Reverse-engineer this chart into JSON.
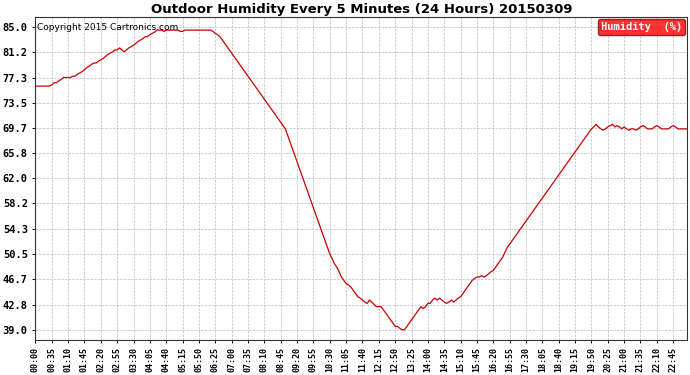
{
  "title": "Outdoor Humidity Every 5 Minutes (24 Hours) 20150309",
  "copyright": "Copyright 2015 Cartronics.com",
  "legend_label": "Humidity  (%)",
  "line_color": "#cc0000",
  "background_color": "#ffffff",
  "grid_color": "#bbbbbb",
  "yticks": [
    39.0,
    42.8,
    46.7,
    50.5,
    54.3,
    58.2,
    62.0,
    65.8,
    69.7,
    73.5,
    77.3,
    81.2,
    85.0
  ],
  "ylim": [
    37.5,
    86.5
  ],
  "humidity_data": [
    76.0,
    76.0,
    76.0,
    76.0,
    76.0,
    76.0,
    76.0,
    76.2,
    76.5,
    76.5,
    76.8,
    77.0,
    77.3,
    77.3,
    77.3,
    77.3,
    77.5,
    77.5,
    77.8,
    78.0,
    78.2,
    78.5,
    78.8,
    79.0,
    79.3,
    79.5,
    79.5,
    79.8,
    80.0,
    80.2,
    80.5,
    80.8,
    81.0,
    81.2,
    81.5,
    81.5,
    81.8,
    81.5,
    81.2,
    81.5,
    81.8,
    82.0,
    82.2,
    82.5,
    82.8,
    83.0,
    83.2,
    83.5,
    83.5,
    83.8,
    84.0,
    84.2,
    84.5,
    84.5,
    84.5,
    84.3,
    84.5,
    84.5,
    84.5,
    84.5,
    84.5,
    84.5,
    84.3,
    84.3,
    84.5,
    84.5,
    84.5,
    84.5,
    84.5,
    84.5,
    84.5,
    84.5,
    84.5,
    84.5,
    84.5,
    84.5,
    84.3,
    84.0,
    83.8,
    83.5,
    83.0,
    82.5,
    82.0,
    81.5,
    81.0,
    80.5,
    80.0,
    79.5,
    79.0,
    78.5,
    78.0,
    77.5,
    77.0,
    76.5,
    76.0,
    75.5,
    75.0,
    74.5,
    74.0,
    73.5,
    73.0,
    72.5,
    72.0,
    71.5,
    71.0,
    70.5,
    70.0,
    69.5,
    68.5,
    67.5,
    66.5,
    65.5,
    64.5,
    63.5,
    62.5,
    61.5,
    60.5,
    59.5,
    58.5,
    57.5,
    56.5,
    55.5,
    54.5,
    53.5,
    52.5,
    51.5,
    50.5,
    49.8,
    49.0,
    48.5,
    47.8,
    47.0,
    46.5,
    46.0,
    45.8,
    45.5,
    45.0,
    44.5,
    44.0,
    43.8,
    43.5,
    43.2,
    43.0,
    43.5,
    43.2,
    42.8,
    42.5,
    42.5,
    42.5,
    42.0,
    41.5,
    41.0,
    40.5,
    40.0,
    39.5,
    39.5,
    39.2,
    39.0,
    39.0,
    39.5,
    40.0,
    40.5,
    41.0,
    41.5,
    42.0,
    42.5,
    42.2,
    42.5,
    43.0,
    43.0,
    43.5,
    43.8,
    43.5,
    43.8,
    43.5,
    43.2,
    43.0,
    43.2,
    43.5,
    43.2,
    43.5,
    43.8,
    44.0,
    44.5,
    45.0,
    45.5,
    46.0,
    46.5,
    46.8,
    47.0,
    47.0,
    47.2,
    47.0,
    47.2,
    47.5,
    47.8,
    48.0,
    48.5,
    49.0,
    49.5,
    50.0,
    50.8,
    51.5,
    52.0,
    52.5,
    53.0,
    53.5,
    54.0,
    54.5,
    55.0,
    55.5,
    56.0,
    56.5,
    57.0,
    57.5,
    58.0,
    58.5,
    59.0,
    59.5,
    60.0,
    60.5,
    61.0,
    61.5,
    62.0,
    62.5,
    63.0,
    63.5,
    64.0,
    64.5,
    65.0,
    65.5,
    66.0,
    66.5,
    67.0,
    67.5,
    68.0,
    68.5,
    69.0,
    69.5,
    69.8,
    70.2,
    69.8,
    69.5,
    69.3,
    69.5,
    69.8,
    70.0,
    70.2,
    69.8,
    70.0,
    69.8,
    69.5,
    69.8,
    69.5,
    69.3,
    69.5,
    69.5,
    69.3,
    69.5,
    69.8,
    70.0,
    69.8,
    69.5,
    69.5,
    69.5,
    69.8,
    70.0,
    69.8,
    69.5,
    69.5,
    69.5,
    69.5,
    69.8,
    70.0,
    69.8,
    69.5,
    69.5,
    69.5,
    69.5,
    69.5
  ]
}
